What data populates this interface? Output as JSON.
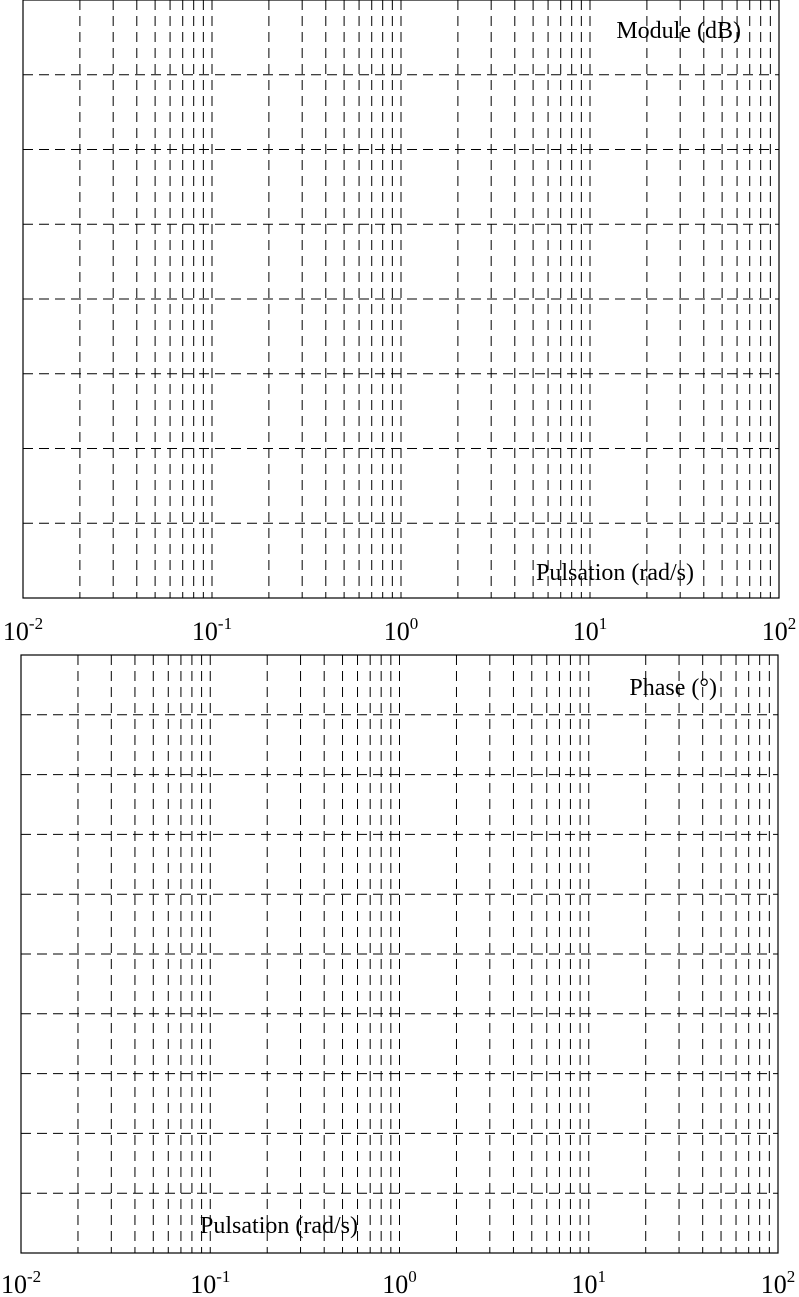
{
  "chart_data": [
    {
      "type": "line",
      "xscale": "log",
      "xlim": [
        0.01,
        100
      ],
      "ylabel": "Module (dB)",
      "xlabel": "Pulsation (rad/s)",
      "xtick_labels": [
        {
          "base": "10",
          "exp": "-2"
        },
        {
          "base": "10",
          "exp": "-1"
        },
        {
          "base": "10",
          "exp": "0"
        },
        {
          "base": "10",
          "exp": "1"
        },
        {
          "base": "10",
          "exp": "2"
        }
      ],
      "horizontal_gridlines": 7,
      "grid": true,
      "series": []
    },
    {
      "type": "line",
      "xscale": "log",
      "xlim": [
        0.01,
        100
      ],
      "ylabel": "Phase (°)",
      "xlabel": "Pulsation (rad/s)",
      "xtick_labels": [
        {
          "base": "10",
          "exp": "-2"
        },
        {
          "base": "10",
          "exp": "-1"
        },
        {
          "base": "10",
          "exp": "0"
        },
        {
          "base": "10",
          "exp": "1"
        },
        {
          "base": "10",
          "exp": "2"
        }
      ],
      "horizontal_gridlines": 9,
      "grid": true,
      "series": []
    }
  ]
}
